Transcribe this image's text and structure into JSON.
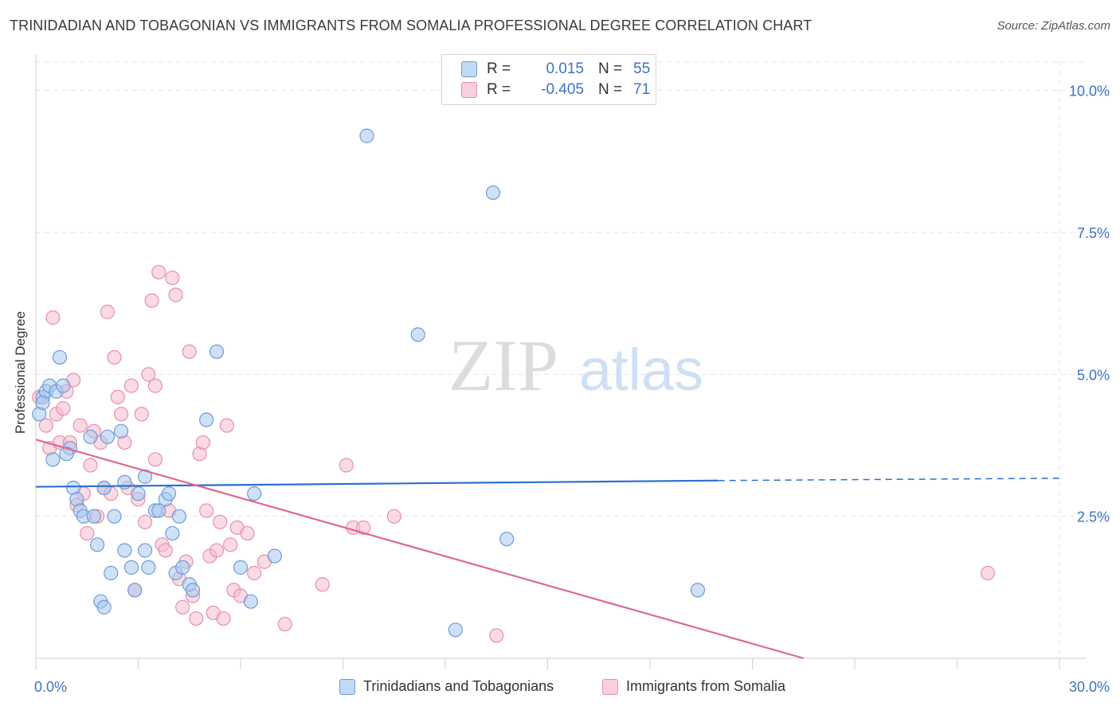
{
  "header": {
    "title": "TRINIDADIAN AND TOBAGONIAN VS IMMIGRANTS FROM SOMALIA PROFESSIONAL DEGREE CORRELATION CHART",
    "source": "Source: ZipAtlas.com"
  },
  "watermark": {
    "zip": "ZIP",
    "atlas": "atlas"
  },
  "stats": {
    "r_label": "R =",
    "n_label": "N =",
    "blue": {
      "r": "0.015",
      "n": "55"
    },
    "pink": {
      "r": "-0.405",
      "n": "71"
    }
  },
  "colors": {
    "blue_fill": "#a9c8ef",
    "blue_stroke": "#6d9bd8",
    "blue_line": "#2d6fcf",
    "pink_fill": "#f6bccd",
    "pink_stroke": "#e690ab",
    "pink_line": "#e0678f",
    "tick_label": "#3d72c4",
    "grid": "#e3e3e3"
  },
  "chart_data": {
    "type": "scatter",
    "title": "TRINIDADIAN AND TOBAGONIAN VS IMMIGRANTS FROM SOMALIA PROFESSIONAL DEGREE CORRELATION CHART",
    "xlabel": "",
    "ylabel": "Professional Degree",
    "xlim": [
      0,
      30
    ],
    "ylim": [
      0,
      10.5
    ],
    "x_tick_labels": [
      "0.0%",
      "30.0%"
    ],
    "y_ticks": [
      2.5,
      5.0,
      7.5,
      10.0
    ],
    "y_tick_labels": [
      "2.5%",
      "5.0%",
      "7.5%",
      "10.0%"
    ],
    "grid": true,
    "legend_position": "bottom",
    "series": [
      {
        "name": "Trinidadians and Tobagonians",
        "color": "#a9c8ef",
        "trend": {
          "x": [
            0,
            20,
            30
          ],
          "y": [
            3.02,
            3.13,
            3.17
          ],
          "dashed_from": 20
        },
        "points": [
          [
            0.1,
            4.3
          ],
          [
            0.2,
            4.6
          ],
          [
            0.3,
            4.7
          ],
          [
            0.4,
            4.8
          ],
          [
            0.5,
            3.5
          ],
          [
            0.6,
            4.7
          ],
          [
            0.7,
            5.3
          ],
          [
            0.8,
            4.8
          ],
          [
            1.0,
            3.7
          ],
          [
            1.1,
            3.0
          ],
          [
            1.2,
            2.8
          ],
          [
            1.3,
            2.6
          ],
          [
            1.4,
            2.5
          ],
          [
            1.6,
            3.9
          ],
          [
            1.7,
            2.5
          ],
          [
            1.8,
            2.0
          ],
          [
            1.9,
            1.0
          ],
          [
            2.0,
            3.0
          ],
          [
            2.0,
            0.9
          ],
          [
            2.1,
            3.9
          ],
          [
            2.2,
            1.5
          ],
          [
            2.3,
            2.5
          ],
          [
            2.5,
            4.0
          ],
          [
            2.6,
            1.9
          ],
          [
            2.6,
            3.1
          ],
          [
            2.8,
            1.6
          ],
          [
            2.9,
            1.2
          ],
          [
            3.0,
            2.9
          ],
          [
            3.2,
            1.9
          ],
          [
            3.2,
            3.2
          ],
          [
            3.3,
            1.6
          ],
          [
            3.5,
            2.6
          ],
          [
            3.6,
            2.6
          ],
          [
            3.8,
            2.8
          ],
          [
            3.9,
            2.9
          ],
          [
            4.0,
            2.2
          ],
          [
            4.1,
            1.5
          ],
          [
            4.2,
            2.5
          ],
          [
            4.3,
            1.6
          ],
          [
            4.5,
            1.3
          ],
          [
            4.6,
            1.2
          ],
          [
            5.0,
            4.2
          ],
          [
            5.3,
            5.4
          ],
          [
            6.0,
            1.6
          ],
          [
            6.3,
            1.0
          ],
          [
            6.4,
            2.9
          ],
          [
            7.0,
            1.8
          ],
          [
            9.7,
            9.2
          ],
          [
            11.2,
            5.7
          ],
          [
            12.3,
            0.5
          ],
          [
            13.4,
            8.2
          ],
          [
            13.8,
            2.1
          ],
          [
            19.4,
            1.2
          ],
          [
            0.2,
            4.5
          ],
          [
            0.9,
            3.6
          ]
        ]
      },
      {
        "name": "Immigrants from Somalia",
        "color": "#f6bccd",
        "trend": {
          "x": [
            0,
            22.5
          ],
          "y": [
            3.85,
            0.0
          ]
        },
        "points": [
          [
            0.1,
            4.6
          ],
          [
            0.3,
            4.1
          ],
          [
            0.4,
            3.7
          ],
          [
            0.5,
            6.0
          ],
          [
            0.6,
            4.3
          ],
          [
            0.7,
            3.8
          ],
          [
            0.8,
            4.4
          ],
          [
            0.9,
            4.7
          ],
          [
            1.0,
            3.8
          ],
          [
            1.1,
            4.9
          ],
          [
            1.2,
            2.7
          ],
          [
            1.3,
            4.1
          ],
          [
            1.4,
            2.9
          ],
          [
            1.5,
            2.2
          ],
          [
            1.6,
            3.4
          ],
          [
            1.7,
            4.0
          ],
          [
            1.8,
            2.5
          ],
          [
            1.9,
            3.8
          ],
          [
            2.0,
            3.0
          ],
          [
            2.1,
            6.1
          ],
          [
            2.2,
            2.9
          ],
          [
            2.3,
            5.3
          ],
          [
            2.4,
            4.6
          ],
          [
            2.5,
            4.3
          ],
          [
            2.6,
            3.8
          ],
          [
            2.7,
            3.0
          ],
          [
            2.8,
            4.8
          ],
          [
            2.9,
            1.2
          ],
          [
            3.0,
            2.8
          ],
          [
            3.1,
            4.3
          ],
          [
            3.2,
            2.4
          ],
          [
            3.3,
            5.0
          ],
          [
            3.4,
            6.3
          ],
          [
            3.5,
            4.8
          ],
          [
            3.6,
            6.8
          ],
          [
            3.7,
            2.0
          ],
          [
            3.8,
            1.9
          ],
          [
            3.9,
            2.6
          ],
          [
            4.0,
            6.7
          ],
          [
            4.1,
            6.4
          ],
          [
            4.2,
            1.4
          ],
          [
            4.3,
            0.9
          ],
          [
            4.4,
            1.7
          ],
          [
            4.5,
            5.4
          ],
          [
            4.6,
            1.1
          ],
          [
            4.7,
            0.7
          ],
          [
            4.8,
            3.6
          ],
          [
            4.9,
            3.8
          ],
          [
            5.0,
            2.6
          ],
          [
            5.1,
            1.8
          ],
          [
            5.2,
            0.8
          ],
          [
            5.3,
            1.9
          ],
          [
            5.4,
            2.4
          ],
          [
            5.5,
            0.7
          ],
          [
            5.6,
            4.1
          ],
          [
            5.7,
            2.0
          ],
          [
            5.8,
            1.2
          ],
          [
            5.9,
            2.3
          ],
          [
            6.0,
            1.1
          ],
          [
            6.2,
            2.2
          ],
          [
            6.4,
            1.5
          ],
          [
            6.7,
            1.7
          ],
          [
            7.3,
            0.6
          ],
          [
            8.4,
            1.3
          ],
          [
            9.1,
            3.4
          ],
          [
            9.3,
            2.3
          ],
          [
            9.6,
            2.3
          ],
          [
            10.5,
            2.5
          ],
          [
            13.5,
            0.4
          ],
          [
            27.9,
            1.5
          ],
          [
            3.5,
            3.5
          ]
        ]
      }
    ]
  }
}
